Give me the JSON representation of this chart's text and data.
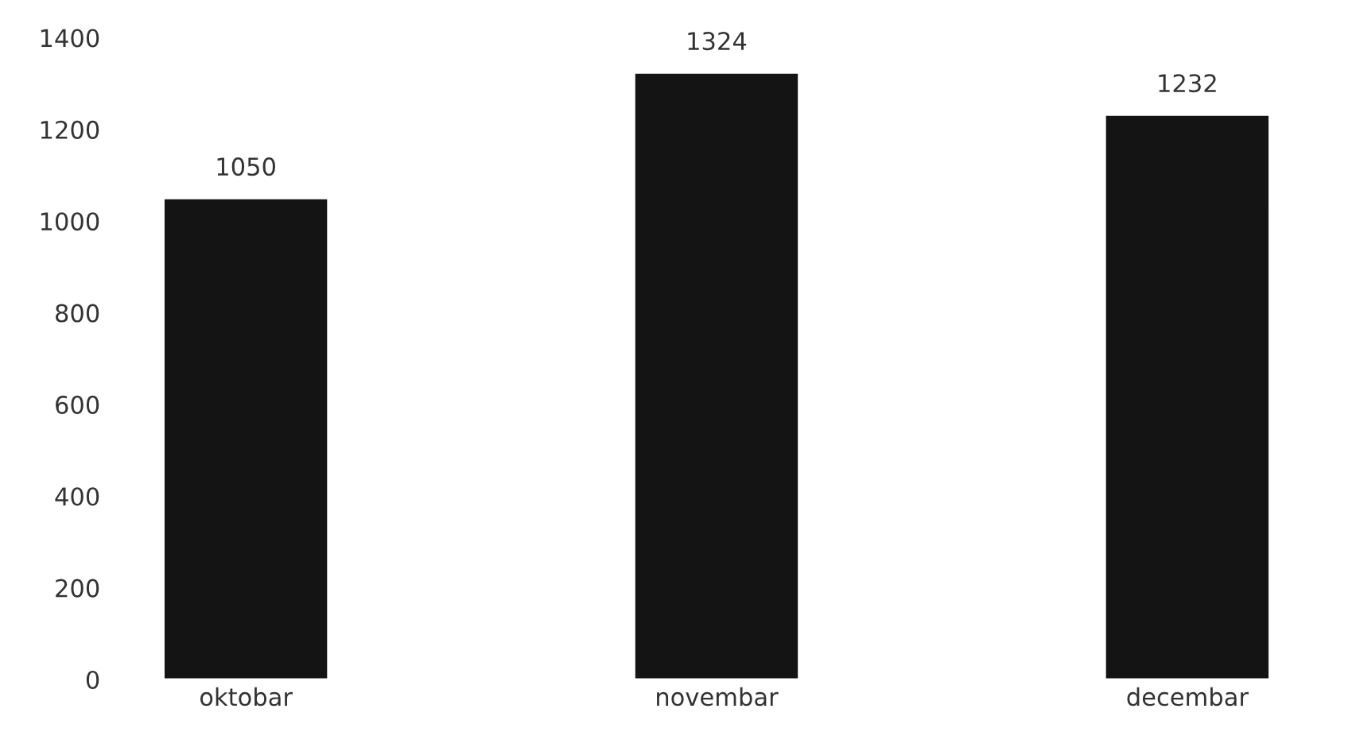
{
  "chart_data": {
    "type": "bar",
    "categories": [
      "oktobar",
      "novembar",
      "decembar"
    ],
    "values": [
      1050,
      1324,
      1232
    ],
    "color": "#141414",
    "ylim": [
      0,
      1400
    ],
    "yticks": [
      0,
      200,
      400,
      600,
      800,
      1000,
      1200,
      1400
    ],
    "data_labels": true,
    "grid": false,
    "legend": false
  }
}
